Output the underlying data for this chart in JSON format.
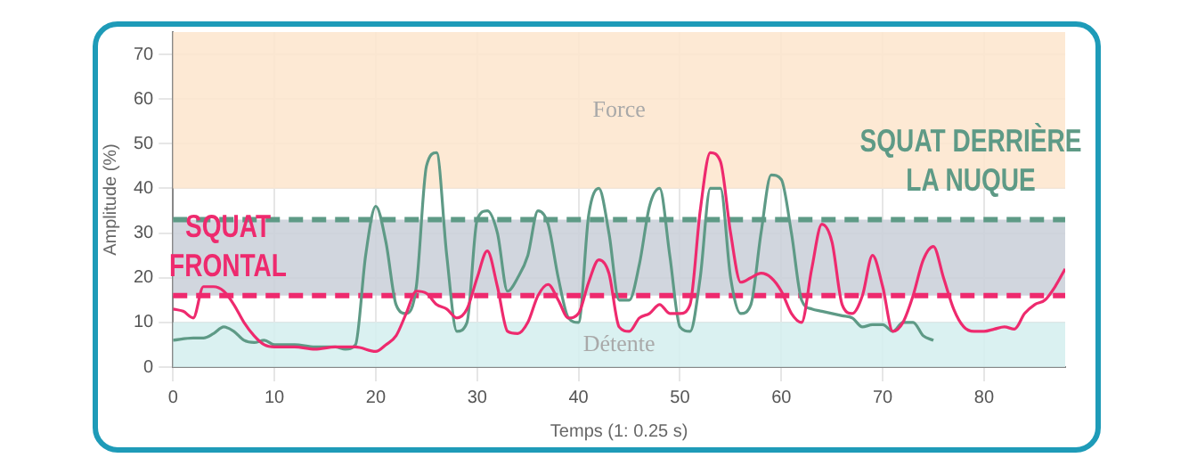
{
  "chart_data": {
    "type": "line",
    "xlabel": "Temps (1: 0.25 s)",
    "ylabel": "Amplitude (%)",
    "xlim": [
      0,
      88
    ],
    "ylim": [
      0,
      75
    ],
    "xticks": [
      0,
      10,
      20,
      30,
      40,
      50,
      60,
      70,
      80
    ],
    "yticks": [
      0,
      10,
      20,
      30,
      40,
      50,
      60,
      70
    ],
    "grid": true,
    "legend": false,
    "marker": "none",
    "line_style": "solid",
    "series": [
      {
        "name": "SQUAT FRONTAL",
        "color": "#ee2a6e",
        "x": [
          0,
          1,
          2,
          3,
          4,
          5,
          6,
          7,
          8,
          9,
          10,
          12,
          14,
          16,
          18,
          20,
          21,
          22,
          23,
          24,
          25,
          26,
          27,
          28,
          29,
          30,
          31,
          32,
          33,
          34,
          35,
          36,
          37,
          38,
          39,
          40,
          41,
          42,
          43,
          44,
          45,
          46,
          47,
          48,
          49,
          50,
          51,
          52,
          53,
          54,
          55,
          56,
          57,
          58,
          59,
          60,
          61,
          62,
          63,
          64,
          65,
          66,
          67,
          68,
          69,
          70,
          71,
          72,
          73,
          74,
          75,
          76,
          77,
          78,
          79,
          80,
          81,
          82,
          83,
          84,
          85,
          86,
          87,
          88
        ],
        "values": [
          13,
          12.5,
          11,
          18,
          18,
          17,
          14,
          10,
          7,
          5,
          4.5,
          4.5,
          4,
          4.5,
          4.5,
          3.5,
          5,
          7,
          12,
          17,
          16.5,
          14,
          13,
          11,
          13,
          20,
          26,
          18,
          8,
          7.5,
          10,
          16,
          18.5,
          15,
          11,
          12,
          19,
          24,
          21,
          9,
          8,
          11,
          12,
          14,
          12,
          12,
          14,
          35,
          48,
          46,
          30,
          19,
          20,
          21,
          20,
          17,
          12,
          10,
          22,
          32,
          28,
          14,
          12,
          16,
          25,
          18,
          8,
          10,
          16,
          24,
          27,
          20,
          13,
          9,
          8,
          8,
          8.5,
          9,
          8.5,
          12,
          14,
          15,
          18,
          22
        ]
      },
      {
        "name": "SQUAT DERRIÈRE LA NUQUE",
        "color": "#5e9a86",
        "x": [
          0,
          2,
          3,
          4,
          5,
          6,
          7,
          8,
          9,
          10,
          12,
          14,
          16,
          17,
          18,
          19,
          20,
          21,
          22,
          23,
          24,
          25,
          26,
          27,
          28,
          29,
          30,
          31,
          32,
          33,
          34,
          35,
          36,
          37,
          38,
          39,
          40,
          41,
          42,
          43,
          44,
          45,
          46,
          47,
          48,
          49,
          50,
          51,
          52,
          53,
          54,
          55,
          56,
          57,
          58,
          59,
          60,
          61,
          62,
          63,
          64,
          65,
          66,
          67,
          68,
          69,
          70,
          71,
          72,
          73,
          74,
          75
        ],
        "values": [
          6,
          6.5,
          6.5,
          7.5,
          9,
          8,
          6,
          5.5,
          6,
          5,
          5,
          4.5,
          4.5,
          4,
          5,
          25,
          36,
          28,
          14,
          12,
          18,
          45,
          48,
          25,
          8,
          10,
          33,
          35,
          30,
          17,
          20,
          25,
          35,
          32,
          20,
          11,
          10,
          34,
          40,
          30,
          15,
          15,
          23,
          36,
          40,
          25,
          9,
          8,
          20,
          40,
          40,
          20,
          12,
          14,
          30,
          43,
          42,
          30,
          15,
          13,
          12.5,
          12,
          11.5,
          11,
          9,
          9.5,
          9.5,
          8,
          10,
          10,
          7,
          6
        ]
      }
    ],
    "bands": [
      {
        "axis": "y",
        "from": 40,
        "to": 75,
        "label": "Force",
        "color": "#fde5cc"
      },
      {
        "axis": "y",
        "from": 0,
        "to": 10,
        "label": "Détente",
        "color": "#d3efee"
      },
      {
        "axis": "y",
        "from": 16,
        "to": 33,
        "label": null,
        "color": "#c9cfd8"
      }
    ],
    "ref_lines": [
      {
        "axis": "y",
        "value": 33,
        "color": "#5e9a86",
        "line_style": "dashed"
      },
      {
        "axis": "y",
        "value": 16,
        "color": "#ee2a6e",
        "line_style": "dashed"
      }
    ]
  }
}
